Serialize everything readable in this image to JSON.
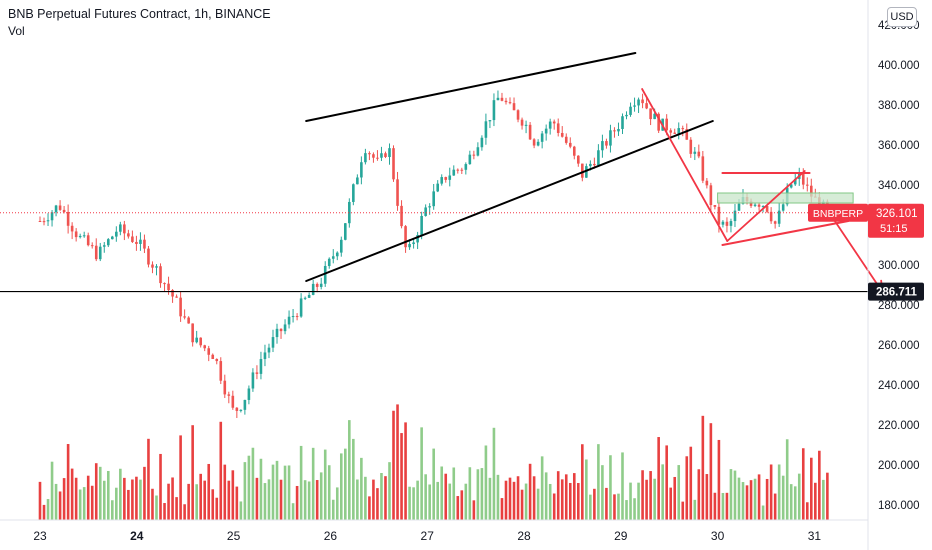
{
  "header": {
    "title": "BNB Perpetual Futures Contract, 1h, BINANCE",
    "volume_label": "Vol",
    "currency_button": "USD"
  },
  "colors": {
    "up": "#26a69a",
    "down": "#ef5350",
    "vol_up": "#8fcc8a",
    "vol_down": "#e84040",
    "trendline_black": "#000000",
    "pattern_red": "#f23645",
    "price_tag_bg": "#f23645",
    "support_tag_bg": "#131722",
    "zone_fill": "#c8e6c9"
  },
  "chart_data": {
    "type": "candlestick",
    "ylim": [
      170,
      425
    ],
    "y_ticks": [
      "420.000",
      "400.000",
      "380.000",
      "360.000",
      "340.000",
      "320.000",
      "300.000",
      "280.000",
      "260.000",
      "240.000",
      "220.000",
      "200.000",
      "180.000"
    ],
    "x_ticks": [
      "23",
      "24",
      "25",
      "26",
      "27",
      "28",
      "29",
      "30",
      "31"
    ],
    "bold_x_ticks": [
      "24"
    ],
    "current_price": {
      "label": "BNBPERP",
      "value": "326.101",
      "countdown": "51:15",
      "price": 326.101
    },
    "support_level": {
      "value": "286.711",
      "price": 286.711
    },
    "price_path": [
      [
        0.0,
        322
      ],
      [
        0.2,
        330
      ],
      [
        0.4,
        314
      ],
      [
        0.6,
        305
      ],
      [
        0.8,
        318
      ],
      [
        1.0,
        312
      ],
      [
        1.2,
        298
      ],
      [
        1.4,
        282
      ],
      [
        1.6,
        262
      ],
      [
        1.8,
        255
      ],
      [
        1.9,
        240
      ],
      [
        2.0,
        226
      ],
      [
        2.1,
        232
      ],
      [
        2.3,
        255
      ],
      [
        2.5,
        268
      ],
      [
        2.7,
        280
      ],
      [
        2.9,
        292
      ],
      [
        3.1,
        312
      ],
      [
        3.25,
        340
      ],
      [
        3.35,
        360
      ],
      [
        3.5,
        350
      ],
      [
        3.6,
        360
      ],
      [
        3.7,
        330
      ],
      [
        3.75,
        312
      ],
      [
        3.8,
        305
      ],
      [
        4.0,
        330
      ],
      [
        4.2,
        345
      ],
      [
        4.4,
        350
      ],
      [
        4.6,
        370
      ],
      [
        4.75,
        385
      ],
      [
        4.85,
        378
      ],
      [
        5.0,
        372
      ],
      [
        5.1,
        362
      ],
      [
        5.3,
        372
      ],
      [
        5.45,
        360
      ],
      [
        5.6,
        345
      ],
      [
        5.8,
        358
      ],
      [
        6.0,
        372
      ],
      [
        6.1,
        382
      ],
      [
        6.2,
        385
      ],
      [
        6.3,
        376
      ],
      [
        6.4,
        370
      ],
      [
        6.6,
        368
      ],
      [
        6.7,
        360
      ],
      [
        6.8,
        352
      ],
      [
        6.9,
        336
      ],
      [
        7.0,
        322
      ],
      [
        7.1,
        318
      ],
      [
        7.25,
        332
      ],
      [
        7.4,
        332
      ],
      [
        7.5,
        330
      ],
      [
        7.6,
        320
      ],
      [
        7.75,
        340
      ],
      [
        7.85,
        344
      ],
      [
        7.95,
        336
      ],
      [
        8.05,
        330
      ],
      [
        8.15,
        326
      ]
    ],
    "annotations": {
      "rising_wedge_upper": [
        [
          2.75,
          372
        ],
        [
          6.15,
          406
        ]
      ],
      "rising_wedge_lower": [
        [
          2.75,
          292
        ],
        [
          6.95,
          372
        ]
      ],
      "breakdown_line": [
        [
          6.22,
          388
        ],
        [
          7.1,
          312
        ]
      ],
      "flag_top": [
        [
          7.05,
          346
        ],
        [
          7.95,
          346
        ]
      ],
      "flag_bottom": [
        [
          7.05,
          310
        ],
        [
          8.35,
          322
        ]
      ],
      "flag_inner_up": [
        [
          7.1,
          312
        ],
        [
          7.9,
          347
        ]
      ],
      "target_arrow": [
        [
          8.1,
          330
        ],
        [
          8.7,
          286.711
        ]
      ],
      "zone": [
        [
          7.0,
          331
        ],
        [
          8.4,
          336
        ]
      ]
    }
  }
}
